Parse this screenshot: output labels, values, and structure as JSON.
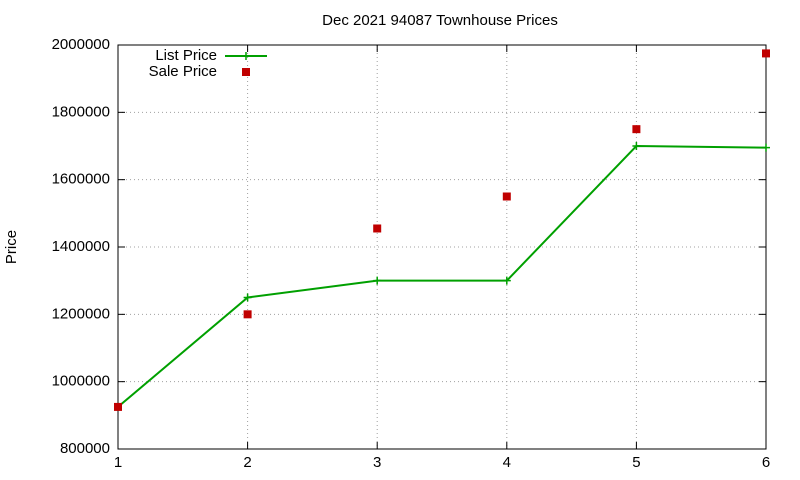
{
  "chart_data": {
    "type": "line",
    "title": "Dec 2021 94087 Townhouse Prices",
    "y_label": "Price",
    "x": [
      1,
      2,
      3,
      4,
      5,
      6
    ],
    "series": [
      {
        "name": "List Price",
        "color": "#00a000",
        "style": "linespoints",
        "values": [
          925000,
          1250000,
          1300000,
          1300000,
          1700000,
          1695000
        ]
      },
      {
        "name": "Sale Price",
        "color": "#c00000",
        "style": "points",
        "values": [
          925000,
          1200000,
          1455000,
          1550000,
          1750000,
          1975000
        ]
      }
    ],
    "xlim": [
      1,
      6
    ],
    "xticks": [
      1,
      2,
      3,
      4,
      5,
      6
    ],
    "ylim": [
      800000,
      2000000
    ],
    "yticks": [
      800000,
      1000000,
      1200000,
      1400000,
      1600000,
      1800000,
      2000000
    ],
    "grid": true,
    "legend": "top-left"
  }
}
